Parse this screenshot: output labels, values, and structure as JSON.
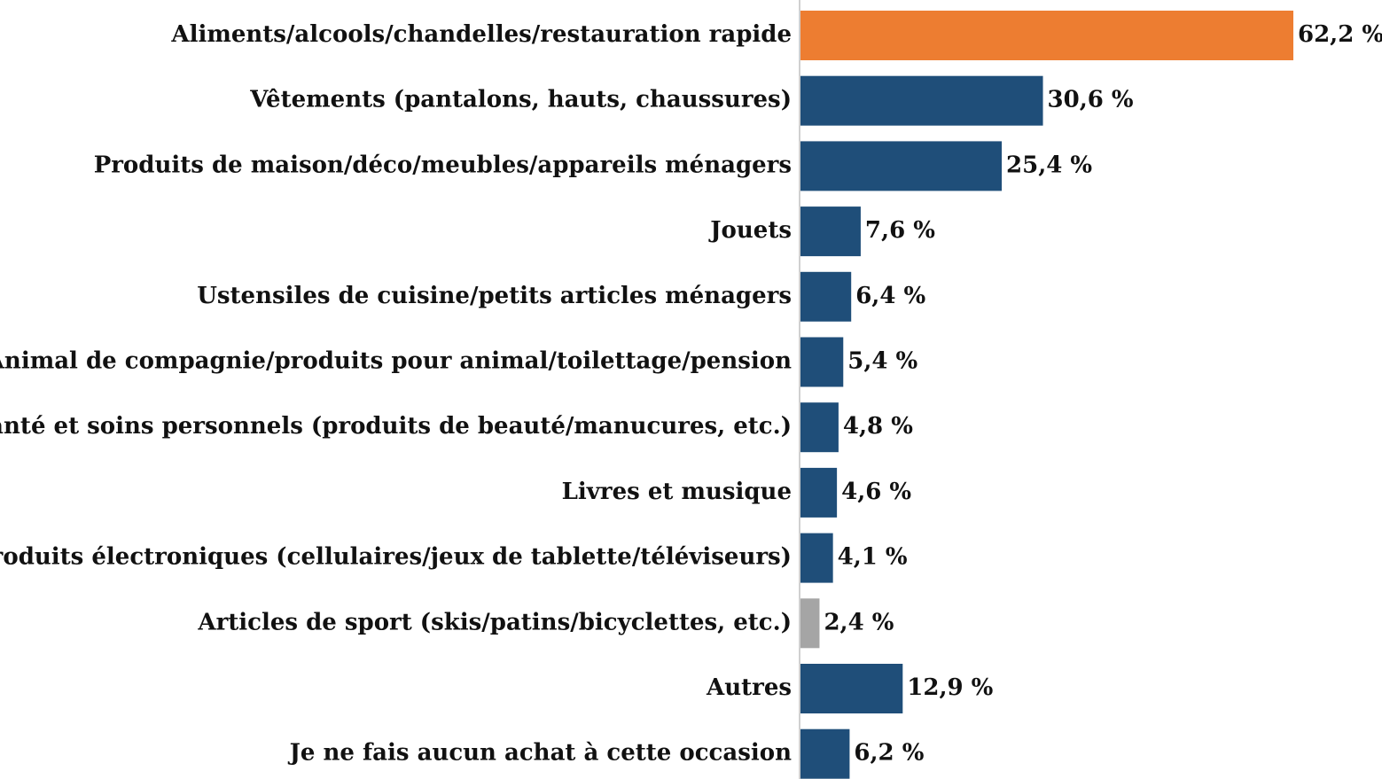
{
  "chart_data": {
    "type": "barh",
    "categories": [
      "Aliments/alcools/chandelles/restauration rapide",
      "Vêtements (pantalons, hauts, chaussures)",
      "Produits de maison/déco/meubles/appareils ménagers",
      "Jouets",
      "Ustensiles de cuisine/petits articles ménagers",
      "Animal de compagnie/produits pour animal/toilettage/pension",
      "Santé et soins personnels (produits de beauté/manucures, etc.)",
      "Livres et musique",
      "Produits électroniques (cellulaires/jeux de tablette/téléviseurs)",
      "Articles de sport (skis/patins/bicyclettes, etc.)",
      "Autres",
      "Je ne fais aucun achat à cette occasion"
    ],
    "values": [
      62.2,
      30.6,
      25.4,
      7.6,
      6.4,
      5.4,
      4.8,
      4.6,
      4.1,
      2.4,
      12.9,
      6.2
    ],
    "value_labels": [
      "62,2 %",
      "30,6 %",
      "25,4 %",
      "7,6 %",
      "6,4 %",
      "5,4 %",
      "4,8 %",
      "4,6 %",
      "4,1 %",
      "2,4 %",
      "12,9 %",
      "6,2 %"
    ],
    "colors": [
      "#ed7d31",
      "#1f4e79",
      "#1f4e79",
      "#1f4e79",
      "#1f4e79",
      "#1f4e79",
      "#1f4e79",
      "#1f4e79",
      "#1f4e79",
      "#a5a5a5",
      "#1f4e79",
      "#1f4e79"
    ]
  }
}
